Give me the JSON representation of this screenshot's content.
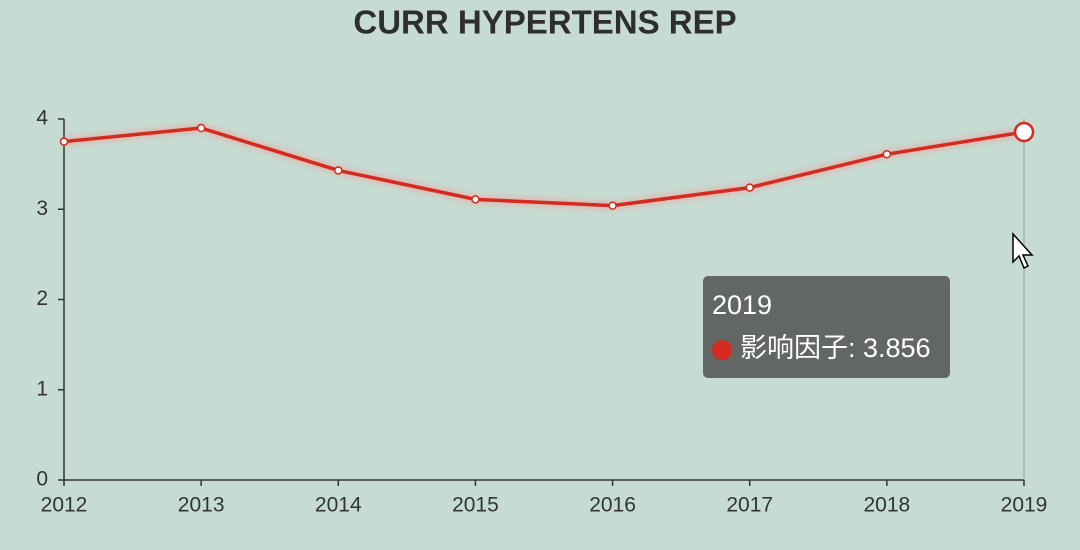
{
  "chart_data": {
    "type": "line",
    "title": "CURR HYPERTENS REP",
    "categories": [
      "2012",
      "2013",
      "2014",
      "2015",
      "2016",
      "2017",
      "2018",
      "2019"
    ],
    "series": [
      {
        "name": "影响因子",
        "color": "#d42a20",
        "values": [
          3.75,
          3.9,
          3.43,
          3.11,
          3.04,
          3.24,
          3.61,
          3.856
        ]
      }
    ],
    "ylim": [
      0,
      4
    ],
    "yticks": [
      0,
      1,
      2,
      3,
      4
    ],
    "grid": false,
    "tooltip": {
      "title": "2019",
      "label": "影响因子: 3.856"
    }
  }
}
